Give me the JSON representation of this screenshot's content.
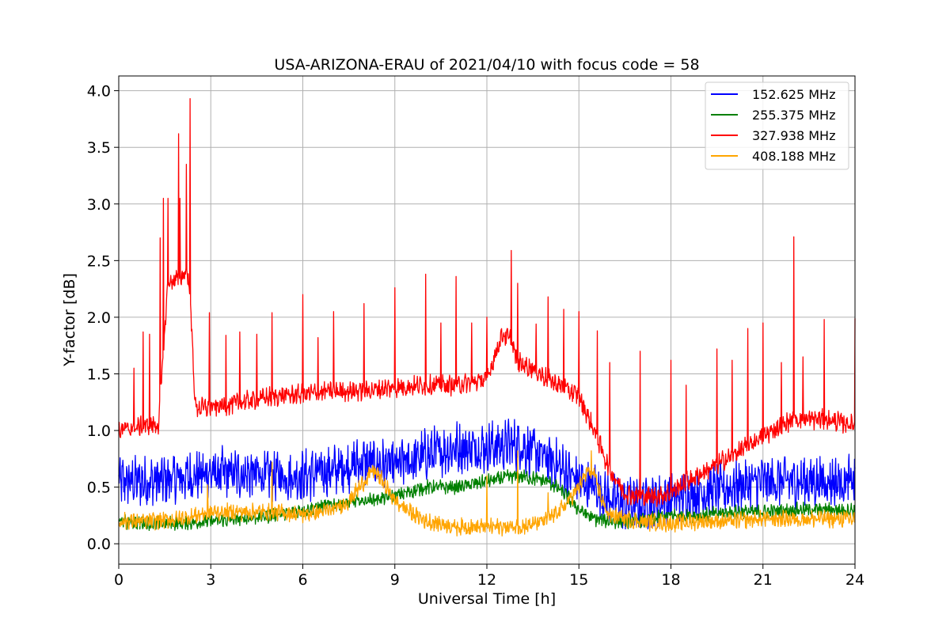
{
  "chart_data": {
    "type": "line",
    "title": "USA-ARIZONA-ERAU of 2021/04/10 with focus code = 58",
    "xlabel": "Universal Time [h]",
    "ylabel": "Y-factor [dB]",
    "xlim": [
      0,
      24
    ],
    "ylim": [
      -0.18,
      4.13
    ],
    "xticks": [
      0,
      3,
      6,
      9,
      12,
      15,
      18,
      21,
      24
    ],
    "yticks": [
      0.0,
      0.5,
      1.0,
      1.5,
      2.0,
      2.5,
      3.0,
      3.5,
      4.0
    ],
    "xtick_labels": [
      "0",
      "3",
      "6",
      "9",
      "12",
      "15",
      "18",
      "21",
      "24"
    ],
    "ytick_labels": [
      "0.0",
      "0.5",
      "1.0",
      "1.5",
      "2.0",
      "2.5",
      "3.0",
      "3.5",
      "4.0"
    ],
    "grid": true,
    "legend_position": "top-right",
    "series": [
      {
        "name": "152.625 MHz",
        "color": "#0000ff",
        "x": [
          0,
          1,
          2,
          3,
          4,
          5,
          6,
          7,
          8,
          9,
          10,
          11,
          12,
          13,
          14,
          15,
          15.5,
          16,
          16.5,
          17,
          18,
          19,
          20,
          21,
          22,
          23,
          24
        ],
        "y": [
          0.55,
          0.55,
          0.58,
          0.62,
          0.62,
          0.6,
          0.6,
          0.65,
          0.72,
          0.68,
          0.78,
          0.85,
          0.85,
          0.88,
          0.75,
          0.55,
          0.5,
          0.4,
          0.35,
          0.35,
          0.4,
          0.45,
          0.5,
          0.55,
          0.55,
          0.55,
          0.55
        ],
        "noise": 0.18
      },
      {
        "name": "255.375 MHz",
        "color": "#008000",
        "x": [
          0,
          1,
          2,
          3,
          4,
          5,
          6,
          7,
          8,
          8.5,
          9,
          10,
          11,
          12,
          12.5,
          13,
          14,
          14.5,
          15,
          15.5,
          16,
          17,
          18,
          19,
          20,
          21,
          22,
          23,
          24
        ],
        "y": [
          0.2,
          0.18,
          0.18,
          0.2,
          0.22,
          0.25,
          0.3,
          0.35,
          0.38,
          0.4,
          0.42,
          0.5,
          0.5,
          0.55,
          0.58,
          0.6,
          0.55,
          0.45,
          0.3,
          0.22,
          0.2,
          0.2,
          0.25,
          0.25,
          0.28,
          0.28,
          0.3,
          0.3,
          0.3
        ],
        "noise": 0.05
      },
      {
        "name": "327.938 MHz",
        "color": "#ff0000",
        "x": [
          0,
          0.5,
          1,
          1.3,
          1.6,
          2.0,
          2.2,
          2.3,
          2.5,
          3,
          4,
          5,
          6,
          7,
          8,
          9,
          10,
          11,
          12,
          12.5,
          12.8,
          13,
          13.5,
          14,
          14.5,
          15,
          15.5,
          16,
          16.5,
          17,
          17.5,
          18,
          18.5,
          19,
          20,
          21,
          22,
          23,
          24
        ],
        "y": [
          1.0,
          1.02,
          1.05,
          1.05,
          2.3,
          2.35,
          2.4,
          2.3,
          1.2,
          1.2,
          1.25,
          1.3,
          1.32,
          1.35,
          1.35,
          1.38,
          1.4,
          1.4,
          1.45,
          1.85,
          1.8,
          1.6,
          1.55,
          1.45,
          1.38,
          1.3,
          1.0,
          0.65,
          0.45,
          0.42,
          0.42,
          0.45,
          0.55,
          0.62,
          0.78,
          0.95,
          1.1,
          1.1,
          1.05
        ],
        "noise": 0.07,
        "spikes": [
          [
            0.5,
            1.55
          ],
          [
            0.8,
            1.87
          ],
          [
            1.0,
            1.85
          ],
          [
            1.35,
            2.7
          ],
          [
            1.45,
            3.05
          ],
          [
            1.6,
            3.05
          ],
          [
            1.95,
            3.62
          ],
          [
            2.0,
            3.05
          ],
          [
            2.2,
            3.35
          ],
          [
            2.32,
            3.93
          ],
          [
            2.95,
            2.04
          ],
          [
            3.5,
            1.84
          ],
          [
            3.95,
            1.87
          ],
          [
            4.5,
            1.85
          ],
          [
            5.0,
            2.04
          ],
          [
            6.0,
            2.2
          ],
          [
            6.5,
            1.82
          ],
          [
            7.0,
            2.05
          ],
          [
            8.0,
            2.12
          ],
          [
            9.0,
            2.26
          ],
          [
            10.0,
            2.38
          ],
          [
            10.5,
            1.95
          ],
          [
            11.0,
            2.36
          ],
          [
            11.5,
            1.95
          ],
          [
            12.0,
            2.0
          ],
          [
            12.8,
            2.59
          ],
          [
            13.0,
            2.3
          ],
          [
            13.6,
            1.94
          ],
          [
            14.0,
            2.18
          ],
          [
            14.5,
            2.07
          ],
          [
            15.0,
            2.05
          ],
          [
            15.6,
            1.88
          ],
          [
            16.0,
            1.6
          ],
          [
            17.0,
            1.7
          ],
          [
            18.0,
            1.62
          ],
          [
            18.5,
            1.4
          ],
          [
            19.5,
            1.72
          ],
          [
            20.0,
            1.62
          ],
          [
            20.5,
            1.9
          ],
          [
            21.0,
            1.95
          ],
          [
            21.6,
            1.6
          ],
          [
            22.0,
            2.71
          ],
          [
            22.3,
            1.65
          ],
          [
            23.0,
            1.98
          ],
          [
            24.0,
            1.99
          ]
        ]
      },
      {
        "name": "408.188 MHz",
        "color": "#ffa500",
        "x": [
          0,
          1,
          2,
          3,
          4,
          5,
          6,
          7,
          7.5,
          8,
          8.3,
          8.6,
          9,
          9.5,
          10,
          11,
          12,
          13,
          13.5,
          14,
          14.5,
          15,
          15.3,
          15.5,
          15.8,
          16,
          17,
          18,
          19,
          20,
          21,
          22,
          23,
          24
        ],
        "y": [
          0.2,
          0.2,
          0.22,
          0.28,
          0.28,
          0.28,
          0.26,
          0.3,
          0.38,
          0.55,
          0.65,
          0.55,
          0.38,
          0.28,
          0.2,
          0.15,
          0.15,
          0.15,
          0.17,
          0.22,
          0.32,
          0.5,
          0.65,
          0.6,
          0.35,
          0.25,
          0.2,
          0.18,
          0.2,
          0.2,
          0.22,
          0.22,
          0.22,
          0.22
        ],
        "noise": 0.06,
        "spikes": [
          [
            2.9,
            0.52
          ],
          [
            5.0,
            0.72
          ],
          [
            12.0,
            0.6
          ],
          [
            13.0,
            0.82
          ],
          [
            14.0,
            0.45
          ],
          [
            15.4,
            0.82
          ]
        ]
      }
    ]
  }
}
